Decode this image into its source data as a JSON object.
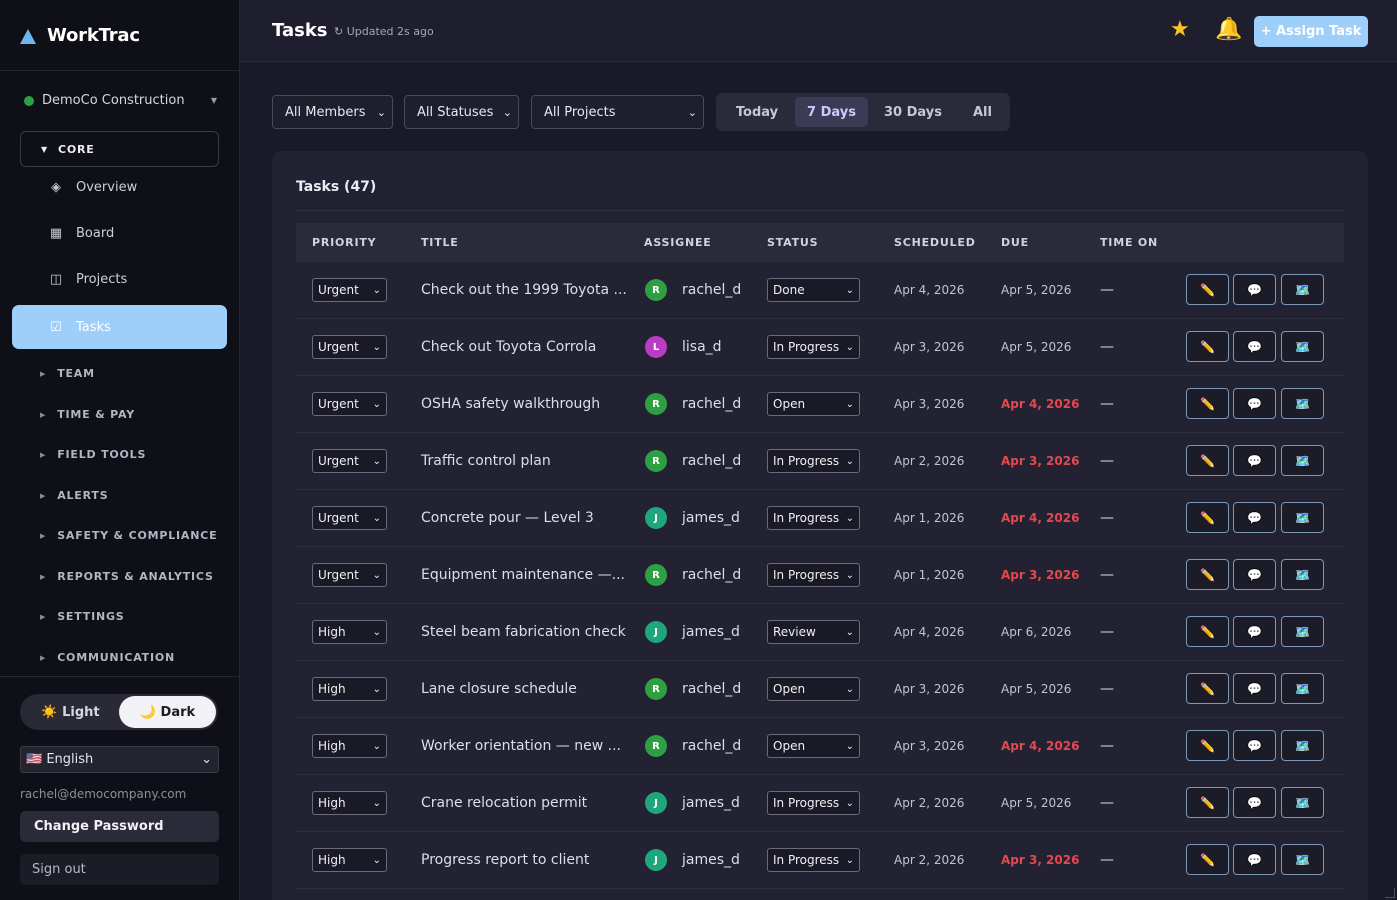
{
  "app": {
    "name": "WorkTrac"
  },
  "org": {
    "name": "DemoCo Construction"
  },
  "nav": {
    "core_label": "CORE",
    "core_items": [
      {
        "label": "Overview",
        "icon": "diamond-icon",
        "glyph": "◈"
      },
      {
        "label": "Board",
        "icon": "board-icon",
        "glyph": "▦"
      },
      {
        "label": "Projects",
        "icon": "projects-icon",
        "glyph": "◫"
      }
    ],
    "active": {
      "label": "Tasks",
      "icon": "checkbox-icon",
      "glyph": "☑"
    },
    "sections": [
      "TEAM",
      "TIME & PAY",
      "FIELD TOOLS",
      "ALERTS",
      "SAFETY & COMPLIANCE",
      "REPORTS & ANALYTICS",
      "SETTINGS",
      "COMMUNICATION"
    ]
  },
  "footer": {
    "light_label": "☀️ Light",
    "dark_label": "🌙 Dark",
    "language": "🇺🇸 English",
    "email": "rachel@democompany.com",
    "change_password": "Change Password",
    "sign_out": "Sign out"
  },
  "header": {
    "title": "Tasks",
    "updated": "↻ Updated 2s ago",
    "assign_label": "+ Assign Task"
  },
  "filters": {
    "members": "All Members",
    "statuses": "All Statuses",
    "projects": "All Projects",
    "ranges": [
      "Today",
      "7 Days",
      "30 Days",
      "All"
    ],
    "selected_range": "7 Days"
  },
  "table": {
    "title": "Tasks (47)",
    "columns": [
      "PRIORITY",
      "TITLE",
      "ASSIGNEE",
      "STATUS",
      "SCHEDULED",
      "DUE",
      "TIME ON"
    ],
    "rows": [
      {
        "priority": "Urgent",
        "title": "Check out the 1999 Toyota ...",
        "initial": "R",
        "assignee": "rachel_d",
        "avatar_color": "#2ea043",
        "status": "Done",
        "scheduled": "Apr 4, 2026",
        "due": "Apr 5, 2026",
        "overdue": false,
        "time_on": "—"
      },
      {
        "priority": "Urgent",
        "title": "Check out Toyota Corrola",
        "initial": "L",
        "assignee": "lisa_d",
        "avatar_color": "#b93dc4",
        "status": "In Progress",
        "scheduled": "Apr 3, 2026",
        "due": "Apr 5, 2026",
        "overdue": false,
        "time_on": "—"
      },
      {
        "priority": "Urgent",
        "title": "OSHA safety walkthrough",
        "initial": "R",
        "assignee": "rachel_d",
        "avatar_color": "#2ea043",
        "status": "Open",
        "scheduled": "Apr 3, 2026",
        "due": "Apr 4, 2026",
        "overdue": true,
        "time_on": "—"
      },
      {
        "priority": "Urgent",
        "title": "Traffic control plan",
        "initial": "R",
        "assignee": "rachel_d",
        "avatar_color": "#2ea043",
        "status": "In Progress",
        "scheduled": "Apr 2, 2026",
        "due": "Apr 3, 2026",
        "overdue": true,
        "time_on": "—"
      },
      {
        "priority": "Urgent",
        "title": "Concrete pour — Level 3",
        "initial": "J",
        "assignee": "james_d",
        "avatar_color": "#20a67c",
        "status": "In Progress",
        "scheduled": "Apr 1, 2026",
        "due": "Apr 4, 2026",
        "overdue": true,
        "time_on": "—"
      },
      {
        "priority": "Urgent",
        "title": "Equipment maintenance —...",
        "initial": "R",
        "assignee": "rachel_d",
        "avatar_color": "#2ea043",
        "status": "In Progress",
        "scheduled": "Apr 1, 2026",
        "due": "Apr 3, 2026",
        "overdue": true,
        "time_on": "—"
      },
      {
        "priority": "High",
        "title": "Steel beam fabrication check",
        "initial": "J",
        "assignee": "james_d",
        "avatar_color": "#20a67c",
        "status": "Review",
        "scheduled": "Apr 4, 2026",
        "due": "Apr 6, 2026",
        "overdue": false,
        "time_on": "—"
      },
      {
        "priority": "High",
        "title": "Lane closure schedule",
        "initial": "R",
        "assignee": "rachel_d",
        "avatar_color": "#2ea043",
        "status": "Open",
        "scheduled": "Apr 3, 2026",
        "due": "Apr 5, 2026",
        "overdue": false,
        "time_on": "—"
      },
      {
        "priority": "High",
        "title": "Worker orientation — new ...",
        "initial": "R",
        "assignee": "rachel_d",
        "avatar_color": "#2ea043",
        "status": "Open",
        "scheduled": "Apr 3, 2026",
        "due": "Apr 4, 2026",
        "overdue": true,
        "time_on": "—"
      },
      {
        "priority": "High",
        "title": "Crane relocation permit",
        "initial": "J",
        "assignee": "james_d",
        "avatar_color": "#20a67c",
        "status": "In Progress",
        "scheduled": "Apr 2, 2026",
        "due": "Apr 5, 2026",
        "overdue": false,
        "time_on": "—"
      },
      {
        "priority": "High",
        "title": "Progress report to client",
        "initial": "J",
        "assignee": "james_d",
        "avatar_color": "#20a67c",
        "status": "In Progress",
        "scheduled": "Apr 2, 2026",
        "due": "Apr 3, 2026",
        "overdue": true,
        "time_on": "—"
      }
    ],
    "actions": [
      {
        "name": "edit-icon",
        "glyph": "✏️"
      },
      {
        "name": "comment-icon",
        "glyph": "💬"
      },
      {
        "name": "map-icon",
        "glyph": "🗺️"
      }
    ]
  }
}
